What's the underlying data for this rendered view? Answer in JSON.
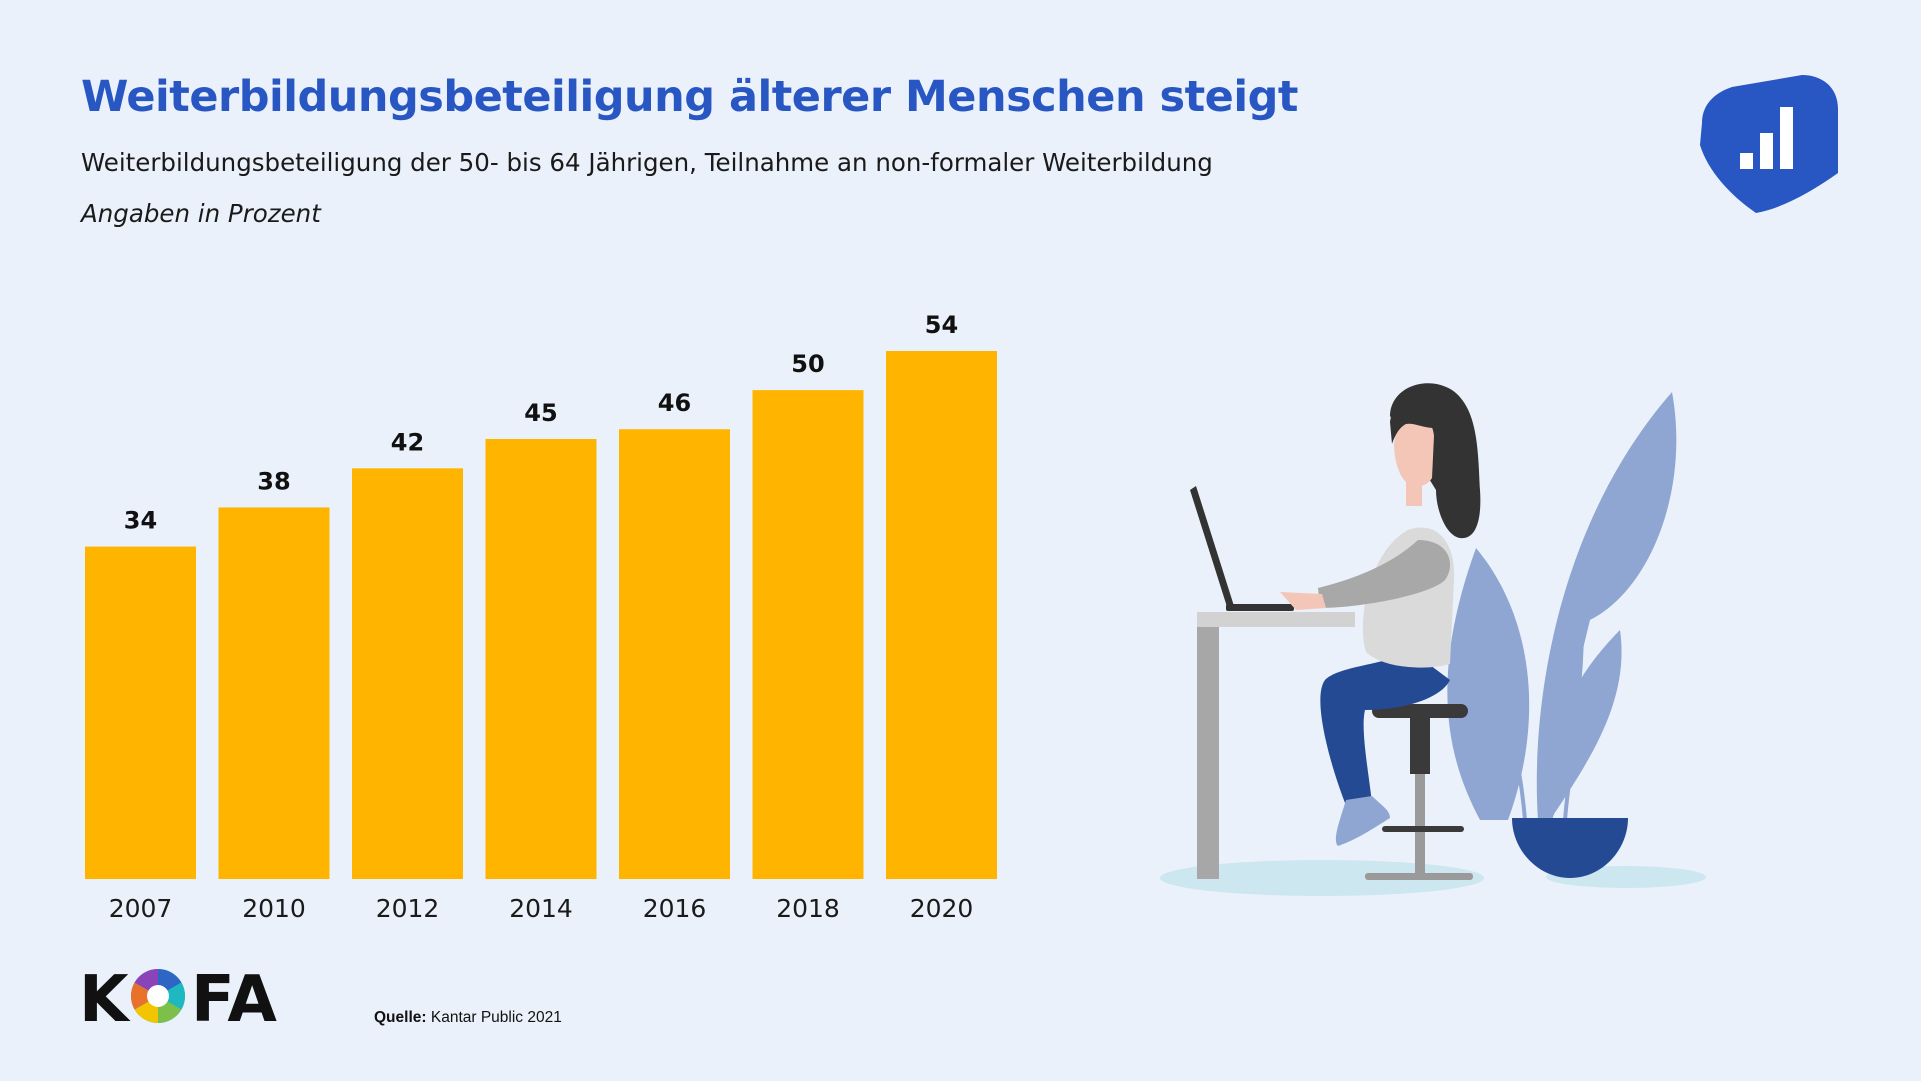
{
  "header": {
    "title": "Weiterbildungsbeteiligung älterer Menschen steigt",
    "subtitle": "Weiterbildungsbeteiligung der 50- bis 64 Jährigen, Teilnahme an non-formaler Weiterbildung",
    "unit_note": "Angaben in Prozent"
  },
  "chart_data": {
    "type": "bar",
    "categories": [
      "2007",
      "2010",
      "2012",
      "2014",
      "2016",
      "2018",
      "2020"
    ],
    "values": [
      34,
      38,
      42,
      45,
      46,
      50,
      54
    ],
    "bar_color": "#ffb500",
    "ylim": [
      0,
      54
    ]
  },
  "footer": {
    "logo_text": "KOFA",
    "source_label": "Quelle:",
    "source_text": "Kantar Public 2021"
  },
  "colors": {
    "title": "#2857c4",
    "background": "#eaf1fa",
    "brand": "#2857c4"
  },
  "icons": {
    "brand": "bar-chart-shield-icon",
    "illustration": "woman-at-laptop-illustration"
  }
}
